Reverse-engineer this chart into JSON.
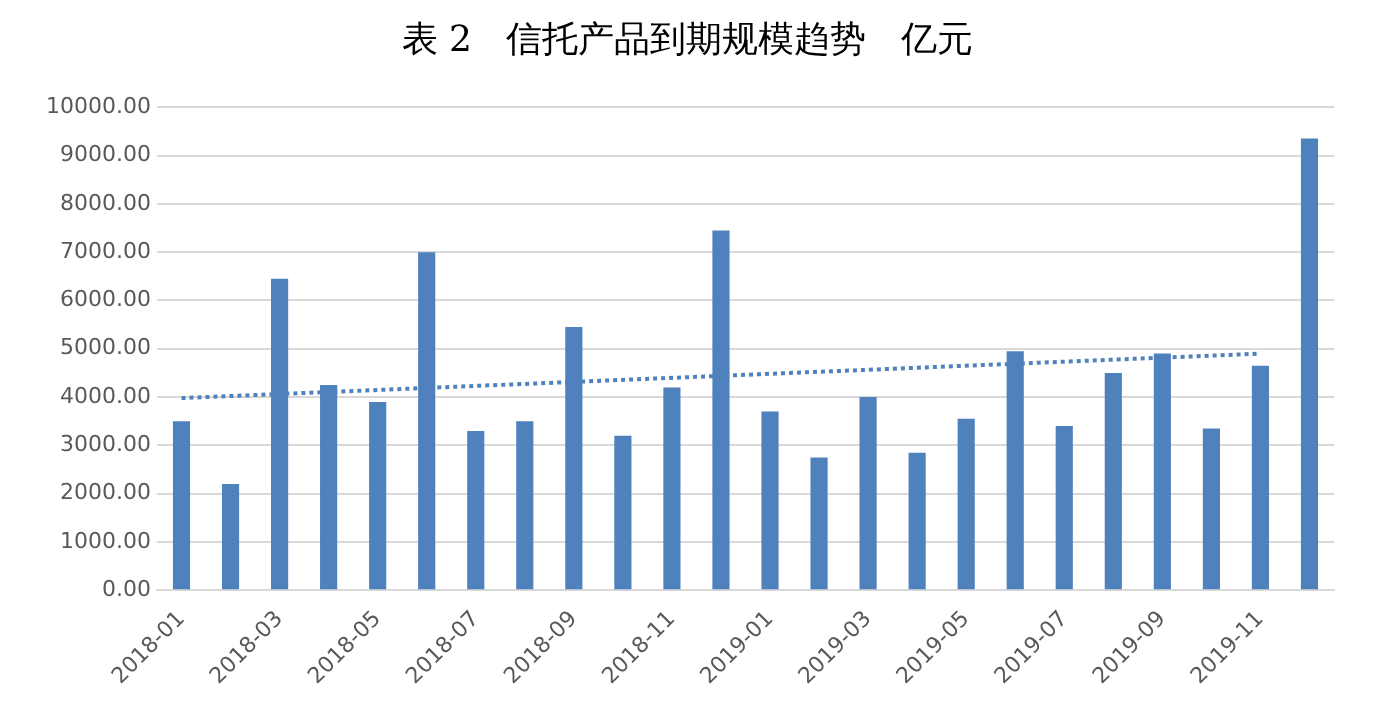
{
  "chart_data": {
    "type": "bar",
    "title": "表 2   信托产品到期规模趋势   亿元",
    "categories": [
      "2018-01",
      null,
      "2018-03",
      null,
      "2018-05",
      null,
      "2018-07",
      null,
      "2018-09",
      null,
      "2018-11",
      null,
      "2019-01",
      null,
      "2019-03",
      null,
      "2019-05",
      null,
      "2019-07",
      null,
      "2019-09",
      null,
      "2019-11",
      null
    ],
    "series": [
      {
        "color": "#4f81bd",
        "values": [
          3500,
          2200,
          6450,
          4250,
          3900,
          7000,
          3300,
          3500,
          5450,
          3200,
          4200,
          7450,
          3700,
          2750,
          4000,
          2850,
          3550,
          4950,
          3400,
          4500,
          4900,
          3350,
          4650,
          9350
        ]
      },
      {
        "type": "line",
        "color": "#4f81bd",
        "line_style": "dotted",
        "marker": "none",
        "values": [
          3980,
          null,
          null,
          null,
          null,
          null,
          null,
          null,
          null,
          null,
          null,
          null,
          null,
          null,
          null,
          null,
          null,
          null,
          null,
          null,
          null,
          null,
          4900,
          null
        ]
      }
    ],
    "ylim": [
      0,
      10000
    ],
    "yticks": [
      {
        "value": 0,
        "label": "0.00"
      },
      {
        "value": 1000,
        "label": "1000.00"
      },
      {
        "value": 2000,
        "label": "2000.00"
      },
      {
        "value": 3000,
        "label": "3000.00"
      },
      {
        "value": 4000,
        "label": "4000.00"
      },
      {
        "value": 5000,
        "label": "5000.00"
      },
      {
        "value": 6000,
        "label": "6000.00"
      },
      {
        "value": 7000,
        "label": "7000.00"
      },
      {
        "value": 8000,
        "label": "8000.00"
      },
      {
        "value": 9000,
        "label": "9000.00"
      },
      {
        "value": 10000,
        "label": "10000.00"
      }
    ],
    "grid": "y",
    "legend": false
  }
}
